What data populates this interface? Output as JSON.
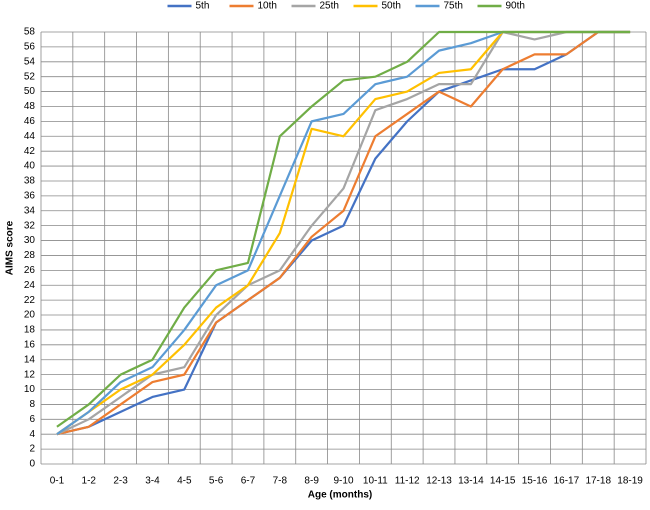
{
  "chart_data": {
    "type": "line",
    "x_label": "Age (months)",
    "y_label": "AIMS score",
    "categories": [
      "0-1",
      "1-2",
      "2-3",
      "3-4",
      "4-5",
      "5-6",
      "6-7",
      "7-8",
      "8-9",
      "9-10",
      "10-11",
      "11-12",
      "12-13",
      "13-14",
      "14-15",
      "15-16",
      "16-17",
      "17-18",
      "18-19"
    ],
    "series": [
      {
        "name": "5th",
        "color": "#4472c4",
        "values": [
          4,
          5,
          7,
          9,
          10,
          19,
          22,
          25,
          30,
          32,
          41,
          46,
          50,
          51.5,
          53,
          53,
          55,
          58,
          58
        ]
      },
      {
        "name": "10th",
        "color": "#ed7d31",
        "values": [
          4,
          5,
          8,
          11,
          12,
          19,
          22,
          25,
          30.5,
          34,
          44,
          47,
          50,
          48,
          53,
          55,
          55,
          58,
          58
        ]
      },
      {
        "name": "25th",
        "color": "#a5a5a5",
        "values": [
          4,
          6,
          9,
          12,
          13,
          20,
          24,
          26,
          32,
          37,
          47.5,
          49,
          51,
          51,
          58,
          57,
          58,
          58,
          58
        ]
      },
      {
        "name": "50th",
        "color": "#ffc000",
        "values": [
          4,
          7,
          10,
          12,
          16,
          21,
          24,
          31,
          45,
          44,
          49,
          50,
          52.5,
          53,
          58,
          58,
          58,
          58,
          58
        ]
      },
      {
        "name": "75th",
        "color": "#5b9bd5",
        "values": [
          4,
          7,
          11,
          13,
          18,
          24,
          26,
          36,
          46,
          47,
          51,
          52,
          55.5,
          56.5,
          58,
          58,
          58,
          58,
          58
        ]
      },
      {
        "name": "90th",
        "color": "#70ad47",
        "values": [
          5,
          8,
          12,
          14,
          21,
          26,
          27,
          44,
          48,
          51.5,
          52,
          54,
          58,
          58,
          58,
          58,
          58,
          58,
          58
        ]
      }
    ],
    "ylim": [
      0,
      58
    ],
    "yticks": [
      0,
      2,
      4,
      6,
      8,
      10,
      12,
      14,
      16,
      18,
      20,
      22,
      24,
      26,
      28,
      30,
      32,
      34,
      36,
      38,
      40,
      42,
      44,
      46,
      48,
      50,
      52,
      54,
      56,
      58
    ],
    "grid": true,
    "legend": "top"
  }
}
